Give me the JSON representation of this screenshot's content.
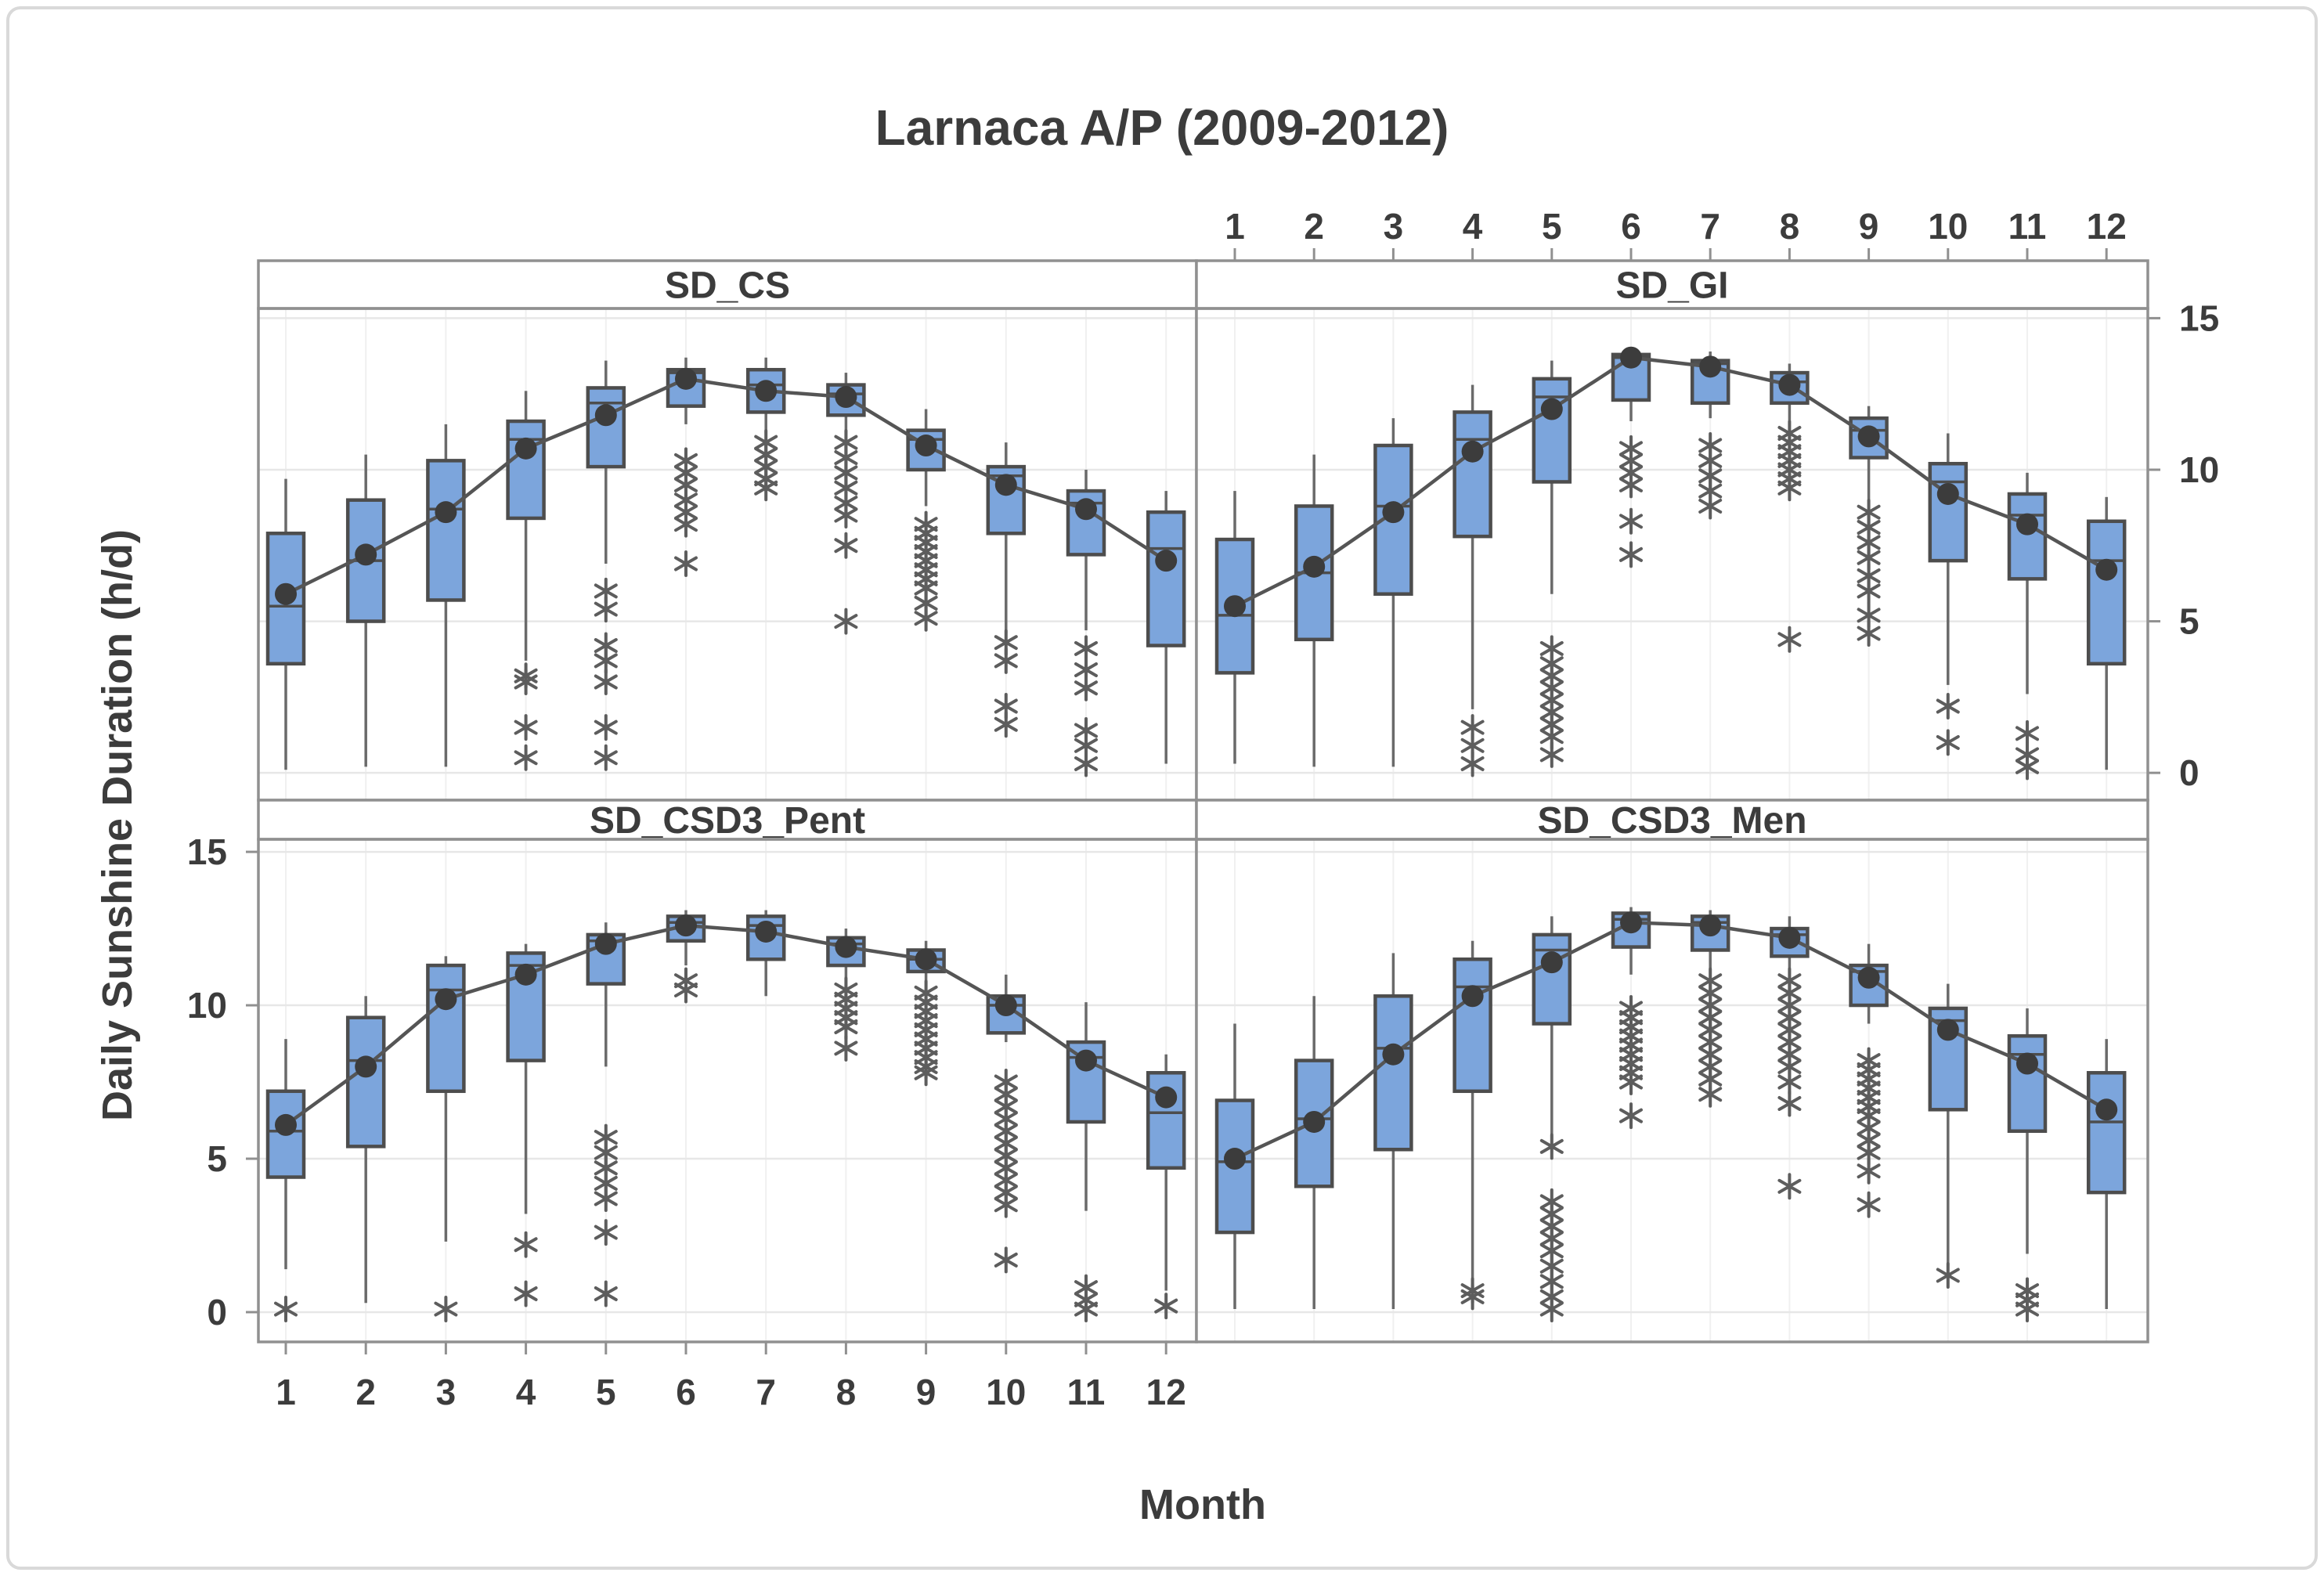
{
  "page": {
    "background": "#ffffff",
    "frame_border_color": "#d9d9d9"
  },
  "chart_data": {
    "type": "boxplot",
    "title": "Larnaca A/P (2009-2012)",
    "xlabel": "Month",
    "ylabel": "Daily Sunshine Duration (h/d)",
    "x_ticks": [
      1,
      2,
      3,
      4,
      5,
      6,
      7,
      8,
      9,
      10,
      11,
      12
    ],
    "y_ticks": [
      0,
      5,
      10,
      15
    ],
    "ylim": [
      -1.0,
      15.4
    ],
    "grid": "on",
    "colors": {
      "box_fill": "#7ca5dc",
      "box_stroke": "#4d4d4d",
      "whisker": "#6a6a6a",
      "mean_marker": "#3c3c3c",
      "mean_line": "#555555",
      "outlier": "#5d5d5d",
      "grid_h": "#e7e7e7",
      "grid_v": "#f0f0f0",
      "panel_border": "#909090",
      "text": "#3c3c3c"
    },
    "panels": [
      {
        "title": "SD_CS",
        "grid_pos": {
          "row": 0,
          "col": 0
        },
        "boxes": [
          {
            "m": 1,
            "lo": 0.1,
            "q1": 3.6,
            "med": 5.5,
            "q3": 7.9,
            "hi": 9.7,
            "mean": 5.9,
            "out": []
          },
          {
            "m": 2,
            "lo": 0.2,
            "q1": 5.0,
            "med": 7.0,
            "q3": 9.0,
            "hi": 10.5,
            "mean": 7.2,
            "out": []
          },
          {
            "m": 3,
            "lo": 0.2,
            "q1": 5.7,
            "med": 8.7,
            "q3": 10.3,
            "hi": 11.5,
            "mean": 8.6,
            "out": []
          },
          {
            "m": 4,
            "lo": 3.7,
            "q1": 8.4,
            "med": 11.0,
            "q3": 11.6,
            "hi": 12.6,
            "mean": 10.7,
            "out": [
              3.2,
              3.0,
              1.5,
              0.5
            ]
          },
          {
            "m": 5,
            "lo": 6.9,
            "q1": 10.1,
            "med": 12.2,
            "q3": 12.7,
            "hi": 13.6,
            "mean": 11.8,
            "out": [
              6.0,
              5.4,
              4.2,
              3.7,
              3.0,
              1.5,
              0.5
            ]
          },
          {
            "m": 6,
            "lo": 11.5,
            "q1": 12.1,
            "med": 13.2,
            "q3": 13.3,
            "hi": 13.7,
            "mean": 13.0,
            "out": [
              10.3,
              9.9,
              9.5,
              9.0,
              8.6,
              8.2,
              6.9
            ]
          },
          {
            "m": 7,
            "lo": 11.2,
            "q1": 11.9,
            "med": 12.8,
            "q3": 13.3,
            "hi": 13.7,
            "mean": 12.6,
            "out": [
              10.9,
              10.5,
              10.1,
              9.7,
              9.4
            ]
          },
          {
            "m": 8,
            "lo": 11.0,
            "q1": 11.8,
            "med": 12.5,
            "q3": 12.8,
            "hi": 13.2,
            "mean": 12.4,
            "out": [
              10.9,
              10.4,
              9.9,
              9.4,
              8.9,
              8.5,
              7.5,
              5.0
            ]
          },
          {
            "m": 9,
            "lo": 8.8,
            "q1": 10.0,
            "med": 11.0,
            "q3": 11.3,
            "hi": 12.0,
            "mean": 10.8,
            "out": [
              8.2,
              7.9,
              7.6,
              7.3,
              7.0,
              6.7,
              6.4,
              6.1,
              5.6,
              5.1
            ]
          },
          {
            "m": 10,
            "lo": 4.6,
            "q1": 7.9,
            "med": 9.8,
            "q3": 10.1,
            "hi": 10.9,
            "mean": 9.5,
            "out": [
              4.3,
              3.7,
              2.2,
              1.6
            ]
          },
          {
            "m": 11,
            "lo": 4.7,
            "q1": 7.2,
            "med": 8.9,
            "q3": 9.3,
            "hi": 10.0,
            "mean": 8.7,
            "out": [
              4.1,
              3.4,
              2.8,
              1.4,
              0.9,
              0.3
            ]
          },
          {
            "m": 12,
            "lo": 0.3,
            "q1": 4.2,
            "med": 7.4,
            "q3": 8.6,
            "hi": 9.3,
            "mean": 7.0,
            "out": []
          }
        ]
      },
      {
        "title": "SD_GI",
        "grid_pos": {
          "row": 0,
          "col": 1
        },
        "boxes": [
          {
            "m": 1,
            "lo": 0.3,
            "q1": 3.3,
            "med": 5.2,
            "q3": 7.7,
            "hi": 9.3,
            "mean": 5.5,
            "out": []
          },
          {
            "m": 2,
            "lo": 0.2,
            "q1": 4.4,
            "med": 6.6,
            "q3": 8.8,
            "hi": 10.5,
            "mean": 6.8,
            "out": []
          },
          {
            "m": 3,
            "lo": 0.2,
            "q1": 5.9,
            "med": 8.8,
            "q3": 10.8,
            "hi": 11.7,
            "mean": 8.6,
            "out": []
          },
          {
            "m": 4,
            "lo": 2.1,
            "q1": 7.8,
            "med": 11.0,
            "q3": 11.9,
            "hi": 12.8,
            "mean": 10.6,
            "out": [
              1.5,
              0.9,
              0.3
            ]
          },
          {
            "m": 5,
            "lo": 5.9,
            "q1": 9.6,
            "med": 12.4,
            "q3": 13.0,
            "hi": 13.6,
            "mean": 12.0,
            "out": [
              4.1,
              3.6,
              3.2,
              2.8,
              2.4,
              2.0,
              1.6,
              1.2,
              0.6
            ]
          },
          {
            "m": 6,
            "lo": 11.6,
            "q1": 12.3,
            "med": 13.7,
            "q3": 13.8,
            "hi": 14.0,
            "mean": 13.7,
            "out": [
              10.7,
              10.3,
              9.9,
              9.5,
              8.3,
              7.2
            ]
          },
          {
            "m": 7,
            "lo": 11.7,
            "q1": 12.2,
            "med": 13.5,
            "q3": 13.6,
            "hi": 13.9,
            "mean": 13.4,
            "out": [
              10.8,
              10.3,
              9.8,
              9.3,
              8.8
            ]
          },
          {
            "m": 8,
            "lo": 11.6,
            "q1": 12.2,
            "med": 12.9,
            "q3": 13.2,
            "hi": 13.5,
            "mean": 12.8,
            "out": [
              11.2,
              10.9,
              10.6,
              10.3,
              10.0,
              9.7,
              9.4,
              4.4
            ]
          },
          {
            "m": 9,
            "lo": 9.0,
            "q1": 10.4,
            "med": 11.3,
            "q3": 11.7,
            "hi": 12.1,
            "mean": 11.1,
            "out": [
              8.6,
              8.1,
              7.6,
              7.1,
              6.5,
              6.0,
              5.2,
              4.6
            ]
          },
          {
            "m": 10,
            "lo": 2.9,
            "q1": 7.0,
            "med": 9.6,
            "q3": 10.2,
            "hi": 11.2,
            "mean": 9.2,
            "out": [
              2.2,
              1.0
            ]
          },
          {
            "m": 11,
            "lo": 2.6,
            "q1": 6.4,
            "med": 8.5,
            "q3": 9.2,
            "hi": 9.9,
            "mean": 8.2,
            "out": [
              1.3,
              0.6,
              0.2
            ]
          },
          {
            "m": 12,
            "lo": 0.1,
            "q1": 3.6,
            "med": 7.0,
            "q3": 8.3,
            "hi": 9.1,
            "mean": 6.7,
            "out": []
          }
        ]
      },
      {
        "title": "SD_CSD3_Pent",
        "grid_pos": {
          "row": 1,
          "col": 0
        },
        "boxes": [
          {
            "m": 1,
            "lo": 1.4,
            "q1": 4.4,
            "med": 5.9,
            "q3": 7.2,
            "hi": 8.9,
            "mean": 6.1,
            "out": [
              0.1
            ]
          },
          {
            "m": 2,
            "lo": 0.3,
            "q1": 5.4,
            "med": 8.2,
            "q3": 9.6,
            "hi": 10.3,
            "mean": 8.0,
            "out": []
          },
          {
            "m": 3,
            "lo": 2.3,
            "q1": 7.2,
            "med": 10.5,
            "q3": 11.3,
            "hi": 11.6,
            "mean": 10.2,
            "out": [
              0.1
            ]
          },
          {
            "m": 4,
            "lo": 3.2,
            "q1": 8.2,
            "med": 11.3,
            "q3": 11.7,
            "hi": 12.0,
            "mean": 11.0,
            "out": [
              2.2,
              0.6
            ]
          },
          {
            "m": 5,
            "lo": 8.0,
            "q1": 10.7,
            "med": 12.1,
            "q3": 12.3,
            "hi": 12.7,
            "mean": 12.0,
            "out": [
              5.7,
              5.2,
              4.7,
              4.2,
              3.7,
              2.6,
              0.6
            ]
          },
          {
            "m": 6,
            "lo": 11.3,
            "q1": 12.1,
            "med": 12.7,
            "q3": 12.9,
            "hi": 13.1,
            "mean": 12.6,
            "out": [
              10.8,
              10.5
            ]
          },
          {
            "m": 7,
            "lo": 10.3,
            "q1": 11.5,
            "med": 12.6,
            "q3": 12.9,
            "hi": 13.1,
            "mean": 12.4,
            "out": []
          },
          {
            "m": 8,
            "lo": 10.9,
            "q1": 11.3,
            "med": 12.0,
            "q3": 12.2,
            "hi": 12.5,
            "mean": 11.9,
            "out": [
              10.5,
              10.2,
              9.9,
              9.6,
              9.3,
              8.6
            ]
          },
          {
            "m": 9,
            "lo": 10.8,
            "q1": 11.1,
            "med": 11.5,
            "q3": 11.8,
            "hi": 12.1,
            "mean": 11.5,
            "out": [
              10.4,
              10.1,
              9.8,
              9.5,
              9.2,
              8.9,
              8.6,
              8.3,
              8.0,
              7.8
            ]
          },
          {
            "m": 10,
            "lo": 8.8,
            "q1": 9.1,
            "med": 10.0,
            "q3": 10.3,
            "hi": 11.0,
            "mean": 10.0,
            "out": [
              7.5,
              7.1,
              6.7,
              6.3,
              5.9,
              5.5,
              5.1,
              4.7,
              4.3,
              3.9,
              3.5,
              1.7
            ]
          },
          {
            "m": 11,
            "lo": 3.3,
            "q1": 6.2,
            "med": 8.3,
            "q3": 8.8,
            "hi": 10.1,
            "mean": 8.2,
            "out": [
              0.8,
              0.4,
              0.1
            ]
          },
          {
            "m": 12,
            "lo": 0.7,
            "q1": 4.7,
            "med": 6.5,
            "q3": 7.8,
            "hi": 8.4,
            "mean": 7.0,
            "out": [
              0.2
            ]
          }
        ]
      },
      {
        "title": "SD_CSD3_Men",
        "grid_pos": {
          "row": 1,
          "col": 1
        },
        "boxes": [
          {
            "m": 1,
            "lo": 0.1,
            "q1": 2.6,
            "med": 4.9,
            "q3": 6.9,
            "hi": 9.4,
            "mean": 5.0,
            "out": []
          },
          {
            "m": 2,
            "lo": 0.1,
            "q1": 4.1,
            "med": 6.3,
            "q3": 8.2,
            "hi": 10.3,
            "mean": 6.2,
            "out": []
          },
          {
            "m": 3,
            "lo": 0.1,
            "q1": 5.3,
            "med": 8.6,
            "q3": 10.3,
            "hi": 11.7,
            "mean": 8.4,
            "out": []
          },
          {
            "m": 4,
            "lo": 0.9,
            "q1": 7.2,
            "med": 10.6,
            "q3": 11.5,
            "hi": 12.1,
            "mean": 10.3,
            "out": [
              0.7,
              0.5
            ]
          },
          {
            "m": 5,
            "lo": 5.6,
            "q1": 9.4,
            "med": 11.8,
            "q3": 12.3,
            "hi": 12.9,
            "mean": 11.4,
            "out": [
              5.4,
              3.6,
              3.2,
              2.8,
              2.4,
              2.0,
              1.5,
              1.0,
              0.5,
              0.1
            ]
          },
          {
            "m": 6,
            "lo": 11.0,
            "q1": 11.9,
            "med": 12.8,
            "q3": 13.0,
            "hi": 13.2,
            "mean": 12.7,
            "out": [
              9.9,
              9.6,
              9.3,
              9.0,
              8.7,
              8.4,
              8.1,
              7.8,
              7.5,
              6.4
            ]
          },
          {
            "m": 7,
            "lo": 11.2,
            "q1": 11.8,
            "med": 12.7,
            "q3": 12.9,
            "hi": 13.1,
            "mean": 12.6,
            "out": [
              10.8,
              10.4,
              10.0,
              9.6,
              9.2,
              8.8,
              8.4,
              8.0,
              7.6,
              7.1
            ]
          },
          {
            "m": 8,
            "lo": 11.0,
            "q1": 11.6,
            "med": 12.3,
            "q3": 12.5,
            "hi": 12.9,
            "mean": 12.2,
            "out": [
              10.8,
              10.4,
              10.0,
              9.6,
              9.2,
              8.8,
              8.4,
              8.0,
              7.5,
              6.8,
              4.1
            ]
          },
          {
            "m": 9,
            "lo": 9.4,
            "q1": 10.0,
            "med": 11.1,
            "q3": 11.3,
            "hi": 12.0,
            "mean": 10.9,
            "out": [
              8.2,
              7.9,
              7.6,
              7.3,
              7.0,
              6.7,
              6.4,
              6.0,
              5.6,
              5.2,
              4.6,
              3.5
            ]
          },
          {
            "m": 10,
            "lo": 1.5,
            "q1": 6.6,
            "med": 9.5,
            "q3": 9.9,
            "hi": 10.7,
            "mean": 9.2,
            "out": [
              1.2
            ]
          },
          {
            "m": 11,
            "lo": 1.9,
            "q1": 5.9,
            "med": 8.4,
            "q3": 9.0,
            "hi": 9.9,
            "mean": 8.1,
            "out": [
              0.7,
              0.4,
              0.1
            ]
          },
          {
            "m": 12,
            "lo": 0.1,
            "q1": 3.9,
            "med": 6.2,
            "q3": 7.8,
            "hi": 8.9,
            "mean": 6.6,
            "out": []
          }
        ]
      }
    ]
  }
}
